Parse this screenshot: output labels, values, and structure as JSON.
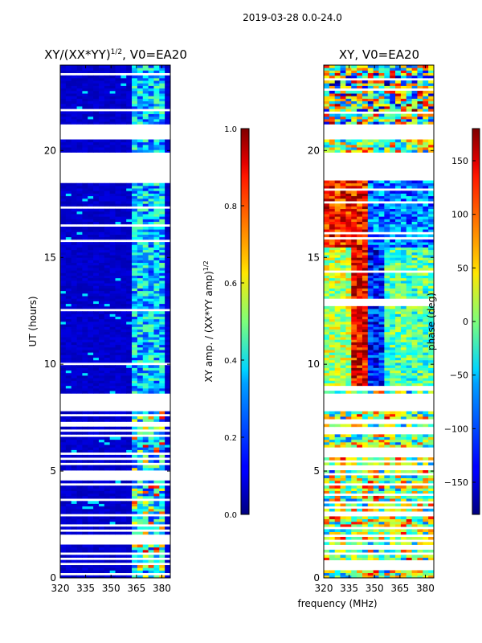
{
  "figure": {
    "suptitle": "2019-03-28 0.0-24.0",
    "xlabel_shared": "frequency (MHz)"
  },
  "chart_data": [
    {
      "type": "heatmap",
      "title": "XY/(XX*YY)^1/2, V0=EA20",
      "title_main": "XY/(XX*YY)",
      "title_exp": "1/2",
      "title_tail": ", V0=EA20",
      "xlabel": "frequency (MHz)",
      "ylabel": "UT (hours)",
      "xlim": [
        320,
        385
      ],
      "ylim": [
        0,
        24
      ],
      "xticks": [
        320,
        335,
        350,
        365,
        380
      ],
      "yticks": [
        0,
        5,
        10,
        15,
        20
      ],
      "data_gaps_hours": [
        [
          7.8,
          8.7
        ],
        [
          18.6,
          19.9
        ],
        [
          20.5,
          21.2
        ]
      ],
      "colorbar": {
        "label": "XY amp. / (XX*YY amp)^1/2",
        "label_main": "XY amp. / (XX*YY amp)",
        "label_exp": "1/2",
        "range": [
          0.0,
          1.0
        ],
        "ticks": [
          "0.0",
          "0.2",
          "0.4",
          "0.6",
          "0.8",
          "1.0"
        ],
        "colormap": "jet"
      }
    },
    {
      "type": "heatmap",
      "title": "XY, V0=EA20",
      "xlabel": "frequency (MHz)",
      "ylabel": "",
      "xlim": [
        320,
        385
      ],
      "ylim": [
        0,
        24
      ],
      "xticks": [
        320,
        335,
        350,
        365,
        380
      ],
      "yticks": [
        0,
        5,
        10,
        15,
        20
      ],
      "data_gaps_hours": [
        [
          7.8,
          8.7
        ],
        [
          18.6,
          19.9
        ],
        [
          20.5,
          21.2
        ]
      ],
      "colorbar": {
        "label": "phase (deg)",
        "range": [
          -180,
          180
        ],
        "ticks": [
          "150",
          "100",
          "50",
          "0",
          "−50",
          "−100",
          "−150"
        ],
        "tick_values": [
          150,
          100,
          50,
          0,
          -50,
          -100,
          -150
        ],
        "colormap": "jet"
      }
    }
  ]
}
